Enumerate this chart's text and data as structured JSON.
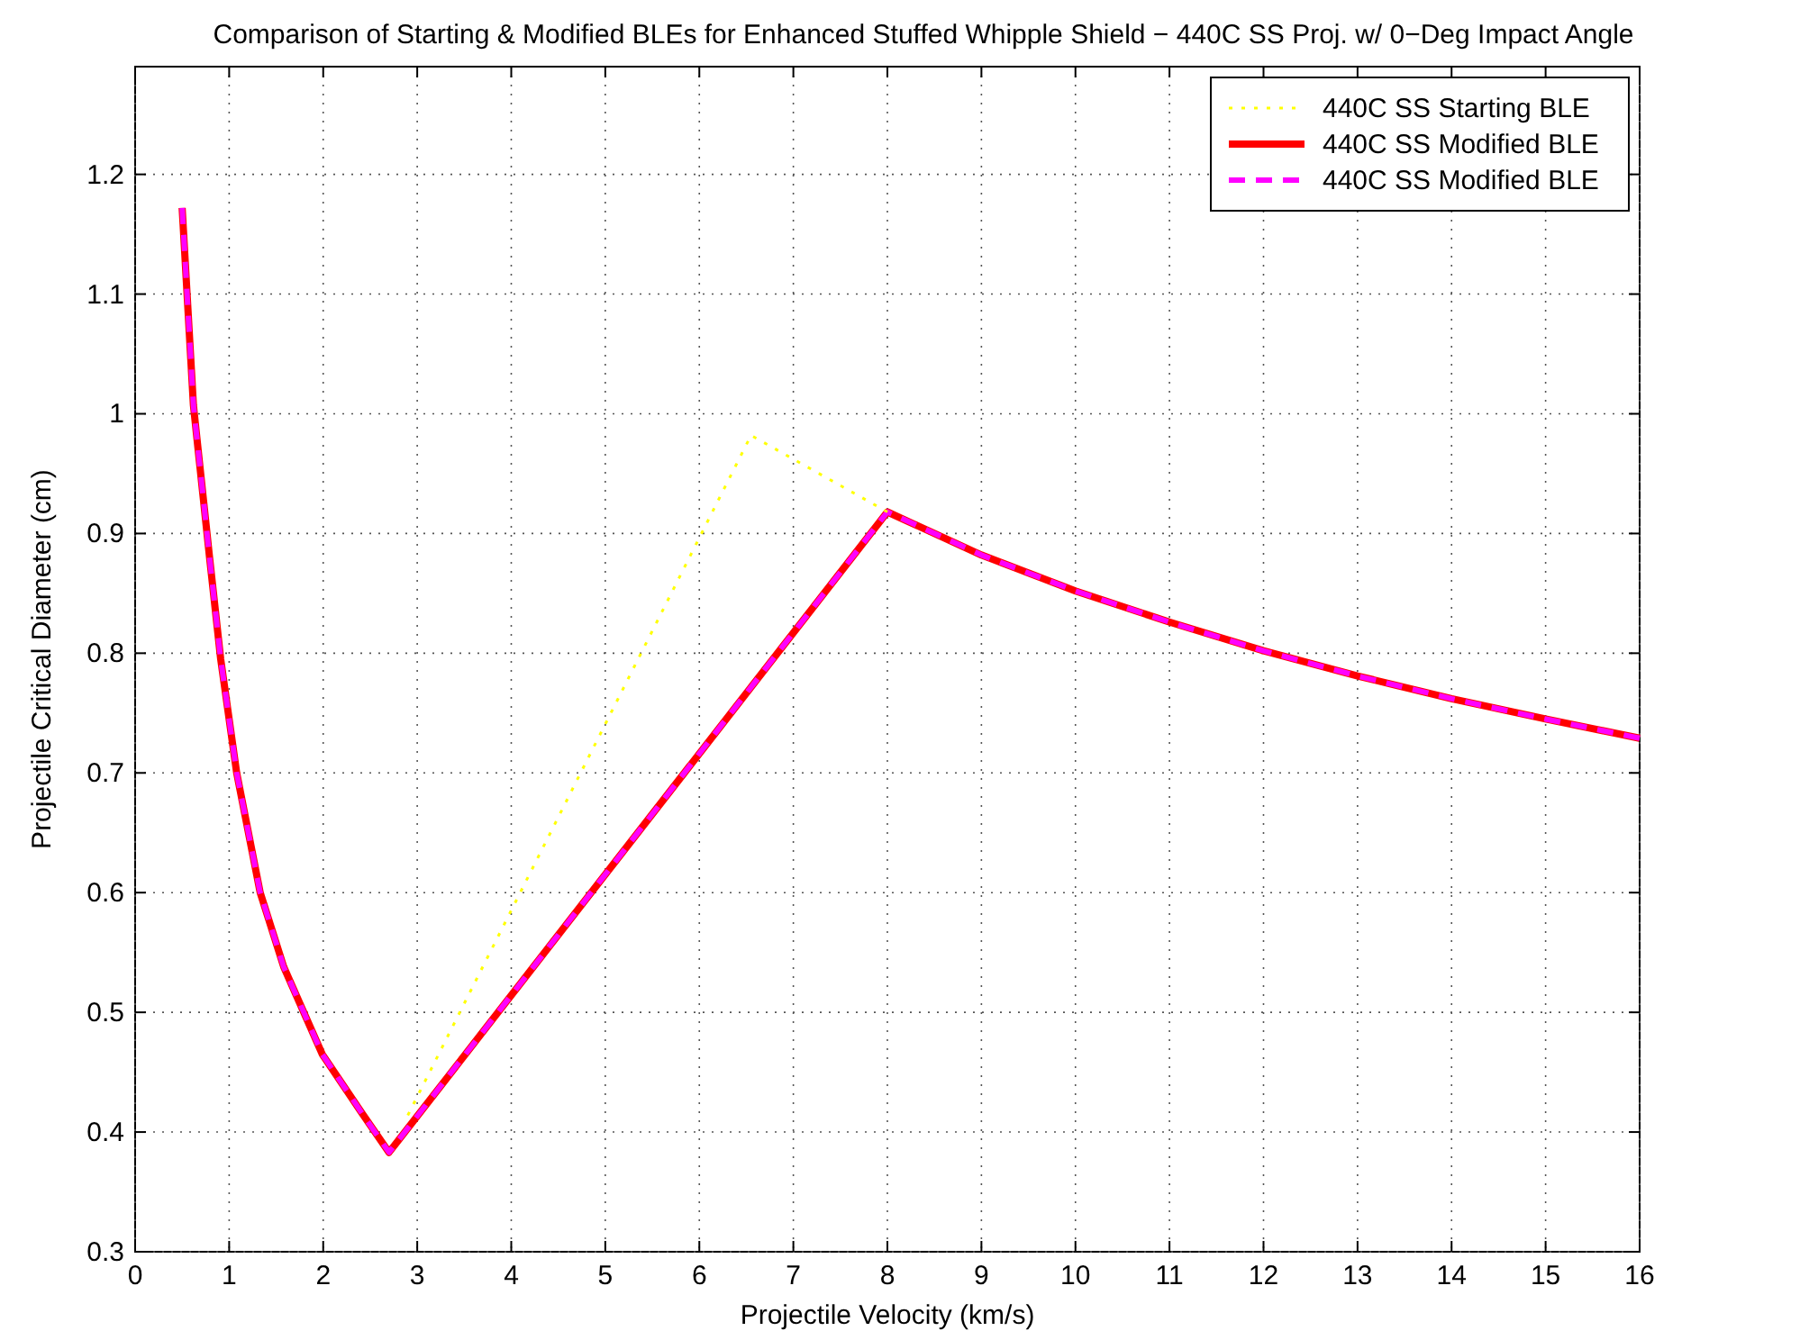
{
  "chart_data": {
    "type": "line",
    "title": "Comparison of Starting & Modified BLEs for Enhanced Stuffed Whipple Shield − 440C SS Proj. w/ 0−Deg Impact Angle",
    "xlabel": "Projectile Velocity (km/s)",
    "ylabel": "Projectile Critical Diameter (cm)",
    "xlim": [
      0,
      16
    ],
    "xticks": [
      0,
      1,
      2,
      3,
      4,
      5,
      6,
      7,
      8,
      9,
      10,
      11,
      12,
      13,
      14,
      15,
      16
    ],
    "ylim": [
      0.3,
      1.29
    ],
    "yticks": [
      0.3,
      0.4,
      0.5,
      0.6,
      0.7,
      0.8,
      0.9,
      1,
      1.1,
      1.2
    ],
    "grid": true,
    "legend": "top right",
    "marker": "none",
    "series": [
      {
        "name": "440C SS Starting BLE",
        "color": "#ffff00",
        "line_style": "dotted",
        "x": [
          2.9,
          6.55,
          8
        ],
        "values": [
          0.414,
          0.982,
          0.918
        ]
      },
      {
        "name": "440C SS Modified BLE",
        "color": "#ff0000",
        "line_style": "solid",
        "x": [
          0.5,
          0.62,
          0.79,
          0.91,
          1.08,
          1.33,
          1.58,
          1.99,
          2.41,
          2.7,
          8,
          9,
          10,
          11,
          12,
          13,
          14,
          15,
          16
        ],
        "values": [
          1.172,
          1.007,
          0.881,
          0.795,
          0.7,
          0.6,
          0.538,
          0.465,
          0.416,
          0.383,
          0.918,
          0.882,
          0.852,
          0.826,
          0.802,
          0.781,
          0.762,
          0.745,
          0.729
        ]
      },
      {
        "name": "440C SS Modified BLE",
        "color": "#ff00ff",
        "line_style": "dashed",
        "x": [
          0.5,
          0.62,
          0.79,
          0.91,
          1.08,
          1.33,
          1.58,
          1.99,
          2.41,
          2.7,
          8,
          9,
          10,
          11,
          12,
          13,
          14,
          15,
          16
        ],
        "values": [
          1.172,
          1.007,
          0.881,
          0.795,
          0.7,
          0.6,
          0.538,
          0.465,
          0.416,
          0.383,
          0.918,
          0.882,
          0.852,
          0.826,
          0.802,
          0.781,
          0.762,
          0.745,
          0.729
        ]
      }
    ]
  }
}
